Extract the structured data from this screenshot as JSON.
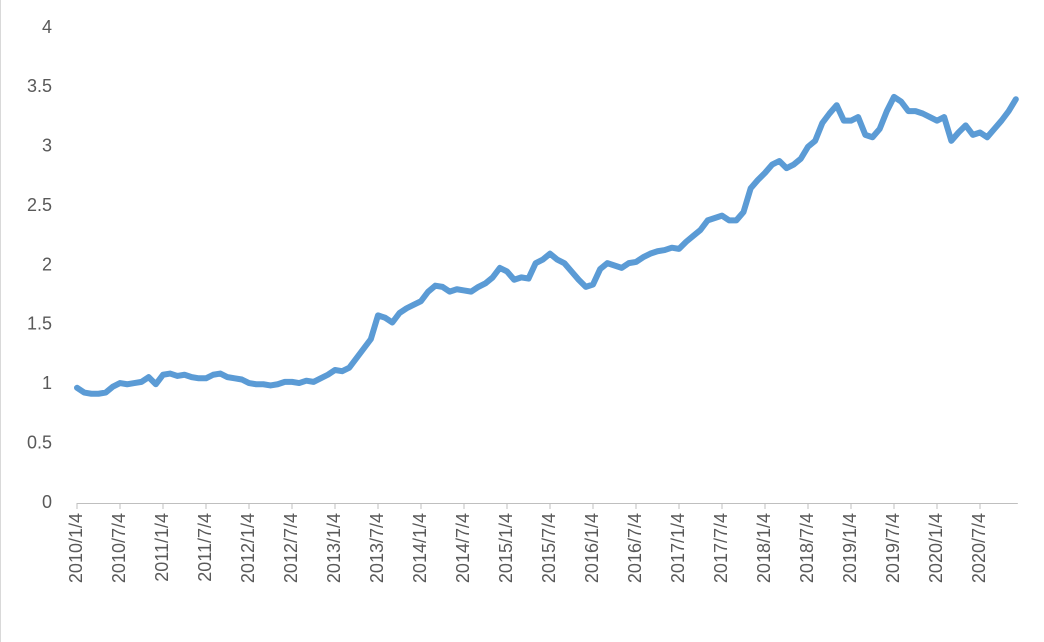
{
  "chart_data": {
    "type": "line",
    "color": "#5b9bd5",
    "ylim": [
      0,
      4
    ],
    "yticks": [
      0,
      0.5,
      1,
      1.5,
      2,
      2.5,
      3,
      3.5,
      4
    ],
    "categories": [
      "2010/1/4",
      null,
      null,
      null,
      null,
      null,
      "2010/7/4",
      null,
      null,
      null,
      null,
      null,
      "2011/1/4",
      null,
      null,
      null,
      null,
      null,
      "2011/7/4",
      null,
      null,
      null,
      null,
      null,
      "2012/1/4",
      null,
      null,
      null,
      null,
      null,
      "2012/7/4",
      null,
      null,
      null,
      null,
      null,
      "2013/1/4",
      null,
      null,
      null,
      null,
      null,
      "2013/7/4",
      null,
      null,
      null,
      null,
      null,
      "2014/1/4",
      null,
      null,
      null,
      null,
      null,
      "2014/7/4",
      null,
      null,
      null,
      null,
      null,
      "2015/1/4",
      null,
      null,
      null,
      null,
      null,
      "2015/7/4",
      null,
      null,
      null,
      null,
      null,
      "2016/1/4",
      null,
      null,
      null,
      null,
      null,
      "2016/7/4",
      null,
      null,
      null,
      null,
      null,
      "2017/1/4",
      null,
      null,
      null,
      null,
      null,
      "2017/7/4",
      null,
      null,
      null,
      null,
      null,
      "2018/1/4",
      null,
      null,
      null,
      null,
      null,
      "2018/7/4",
      null,
      null,
      null,
      null,
      null,
      "2019/1/4",
      null,
      null,
      null,
      null,
      null,
      "2019/7/4",
      null,
      null,
      null,
      null,
      null,
      "2020/1/4",
      null,
      null,
      null,
      null,
      null,
      "2020/7/4",
      null,
      null,
      null,
      null,
      null
    ],
    "values": [
      0.97,
      0.93,
      0.92,
      0.92,
      0.93,
      0.98,
      1.01,
      1.0,
      1.01,
      1.02,
      1.06,
      1.0,
      1.08,
      1.09,
      1.07,
      1.08,
      1.06,
      1.05,
      1.05,
      1.08,
      1.09,
      1.06,
      1.05,
      1.04,
      1.01,
      1.0,
      1.0,
      0.99,
      1.0,
      1.02,
      1.02,
      1.01,
      1.03,
      1.02,
      1.05,
      1.08,
      1.12,
      1.11,
      1.14,
      1.22,
      1.3,
      1.38,
      1.58,
      1.56,
      1.52,
      1.6,
      1.64,
      1.67,
      1.7,
      1.78,
      1.83,
      1.82,
      1.78,
      1.8,
      1.79,
      1.78,
      1.82,
      1.85,
      1.9,
      1.98,
      1.95,
      1.88,
      1.9,
      1.89,
      2.02,
      2.05,
      2.1,
      2.05,
      2.02,
      1.95,
      1.88,
      1.82,
      1.84,
      1.97,
      2.02,
      2.0,
      1.98,
      2.02,
      2.03,
      2.07,
      2.1,
      2.12,
      2.13,
      2.15,
      2.14,
      2.2,
      2.25,
      2.3,
      2.38,
      2.4,
      2.42,
      2.38,
      2.38,
      2.45,
      2.65,
      2.72,
      2.78,
      2.85,
      2.88,
      2.82,
      2.85,
      2.9,
      3.0,
      3.05,
      3.2,
      3.28,
      3.35,
      3.22,
      3.22,
      3.25,
      3.1,
      3.08,
      3.15,
      3.3,
      3.42,
      3.38,
      3.3,
      3.3,
      3.28,
      3.25,
      3.22,
      3.25,
      3.05,
      3.12,
      3.18,
      3.1,
      3.12,
      3.08,
      3.15,
      3.22,
      3.3,
      3.4
    ]
  }
}
